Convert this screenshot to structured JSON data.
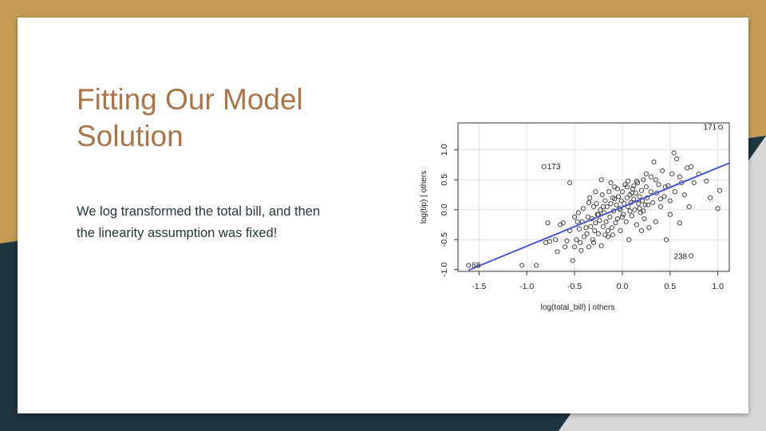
{
  "theme": {
    "slide_background": "#ffffff",
    "frame_gold": "#c49d54",
    "frame_dark": "#1f3540",
    "frame_gray": "#d8d8d8",
    "title_color": "#a8764a",
    "text_color": "#253840"
  },
  "slide": {
    "title_lines": [
      "Fitting Our Model",
      "Solution"
    ],
    "body_lines": [
      "We log transformed the total bill, and then",
      "the linearity assumption was fixed!"
    ]
  },
  "chart_data": {
    "type": "scatter",
    "title": "",
    "xlabel": "log(total_bill) | others",
    "ylabel": "log(tip)  | others",
    "xlim": [
      -1.72,
      1.12
    ],
    "ylim": [
      -1.03,
      1.45
    ],
    "xticks": [
      -1.5,
      -1.0,
      -0.5,
      0.0,
      0.5,
      1.0
    ],
    "xtick_labels": [
      "-1.5",
      "-1.0",
      "-0.5",
      "0.0",
      "0.5",
      "1.0"
    ],
    "yticks": [
      -1.0,
      -0.5,
      0.0,
      0.5,
      1.0
    ],
    "ytick_labels": [
      "-1.0",
      "-0.5",
      "0.0",
      "0.5",
      "1.0"
    ],
    "grid": true,
    "point_color": "#333333",
    "line_color": "#4a55d8",
    "fit_line": {
      "x": [
        -1.61,
        1.12
      ],
      "y": [
        -1.01,
        0.78
      ]
    },
    "labeled_points": [
      {
        "label": "171",
        "x": 1.03,
        "y": 1.38
      },
      {
        "label": "173",
        "x": -0.82,
        "y": 0.72
      },
      {
        "label": "68",
        "x": -1.61,
        "y": -0.93
      },
      {
        "label": "238",
        "x": 0.72,
        "y": -0.77
      }
    ],
    "points": [
      [
        -0.9,
        -0.93
      ],
      [
        -1.05,
        -0.93
      ],
      [
        -0.78,
        -0.22
      ],
      [
        -0.8,
        -0.55
      ],
      [
        -0.76,
        -0.53
      ],
      [
        -0.7,
        -0.5
      ],
      [
        -0.68,
        -0.7
      ],
      [
        -0.65,
        -0.25
      ],
      [
        -0.62,
        -0.22
      ],
      [
        -0.58,
        -0.52
      ],
      [
        -0.55,
        -0.35
      ],
      [
        -0.55,
        0.45
      ],
      [
        -0.52,
        -0.85
      ],
      [
        -0.5,
        -0.62
      ],
      [
        -0.48,
        -0.5
      ],
      [
        -0.47,
        -0.2
      ],
      [
        -0.45,
        -0.32
      ],
      [
        -0.44,
        -0.55
      ],
      [
        -0.42,
        -0.2
      ],
      [
        -0.41,
        0.02
      ],
      [
        -0.4,
        -0.45
      ],
      [
        -0.38,
        -0.3
      ],
      [
        -0.36,
        -0.12
      ],
      [
        -0.35,
        -0.62
      ],
      [
        -0.34,
        0.2
      ],
      [
        -0.33,
        -0.28
      ],
      [
        -0.32,
        -0.15
      ],
      [
        -0.31,
        -0.5
      ],
      [
        -0.3,
        0.05
      ],
      [
        -0.29,
        -0.35
      ],
      [
        -0.28,
        -0.22
      ],
      [
        -0.27,
        0.1
      ],
      [
        -0.26,
        -0.08
      ],
      [
        -0.25,
        -0.4
      ],
      [
        -0.24,
        -0.18
      ],
      [
        -0.23,
        0.0
      ],
      [
        -0.22,
        -0.6
      ],
      [
        -0.21,
        0.25
      ],
      [
        -0.2,
        -0.28
      ],
      [
        -0.19,
        -0.05
      ],
      [
        -0.18,
        0.15
      ],
      [
        -0.17,
        -0.2
      ],
      [
        -0.16,
        0.05
      ],
      [
        -0.15,
        -0.45
      ],
      [
        -0.14,
        0.3
      ],
      [
        -0.13,
        -0.12
      ],
      [
        -0.12,
        0.1
      ],
      [
        -0.11,
        -0.3
      ],
      [
        -0.1,
        0.2
      ],
      [
        -0.09,
        -0.02
      ],
      [
        -0.08,
        0.38
      ],
      [
        -0.07,
        -0.22
      ],
      [
        -0.06,
        0.08
      ],
      [
        -0.05,
        -0.15
      ],
      [
        -0.04,
        0.22
      ],
      [
        -0.03,
        0.02
      ],
      [
        -0.02,
        -0.35
      ],
      [
        -0.01,
        0.15
      ],
      [
        0.0,
        0.3
      ],
      [
        0.01,
        -0.08
      ],
      [
        0.02,
        0.1
      ],
      [
        0.03,
        0.42
      ],
      [
        0.04,
        -0.2
      ],
      [
        0.05,
        0.2
      ],
      [
        0.06,
        0.05
      ],
      [
        0.07,
        -0.5
      ],
      [
        0.08,
        0.25
      ],
      [
        0.09,
        0.12
      ],
      [
        0.1,
        -0.1
      ],
      [
        0.11,
        0.35
      ],
      [
        0.12,
        0.18
      ],
      [
        0.13,
        0.0
      ],
      [
        0.14,
        0.28
      ],
      [
        0.15,
        -0.25
      ],
      [
        0.16,
        0.45
      ],
      [
        0.17,
        0.1
      ],
      [
        0.18,
        0.22
      ],
      [
        0.19,
        -0.05
      ],
      [
        0.2,
        0.32
      ],
      [
        0.21,
        0.15
      ],
      [
        0.22,
        0.5
      ],
      [
        0.23,
        -0.15
      ],
      [
        0.24,
        0.08
      ],
      [
        0.25,
        0.38
      ],
      [
        0.26,
        0.2
      ],
      [
        0.28,
        -0.3
      ],
      [
        0.3,
        0.55
      ],
      [
        0.32,
        0.12
      ],
      [
        0.33,
        0.8
      ],
      [
        0.35,
        -0.2
      ],
      [
        0.36,
        0.28
      ],
      [
        0.38,
        0.42
      ],
      [
        0.4,
        0.05
      ],
      [
        0.42,
        0.65
      ],
      [
        0.44,
        0.22
      ],
      [
        0.46,
        -0.5
      ],
      [
        0.48,
        0.4
      ],
      [
        0.5,
        0.15
      ],
      [
        0.52,
        0.6
      ],
      [
        0.54,
        0.95
      ],
      [
        0.55,
        0.3
      ],
      [
        0.57,
        0.85
      ],
      [
        0.6,
        -0.22
      ],
      [
        0.62,
        0.45
      ],
      [
        0.65,
        0.25
      ],
      [
        0.68,
        0.7
      ],
      [
        0.7,
        0.05
      ],
      [
        0.72,
        0.72
      ],
      [
        0.75,
        0.45
      ],
      [
        0.8,
        0.6
      ],
      [
        0.88,
        0.48
      ],
      [
        0.92,
        0.2
      ],
      [
        1.0,
        0.02
      ],
      [
        1.02,
        0.32
      ],
      [
        -0.6,
        -0.62
      ],
      [
        -0.5,
        -0.12
      ],
      [
        -0.43,
        -0.68
      ],
      [
        -0.37,
        -0.4
      ],
      [
        -0.3,
        -0.55
      ],
      [
        -0.25,
        -0.08
      ],
      [
        -0.2,
        0.05
      ],
      [
        -0.15,
        -0.35
      ],
      [
        -0.1,
        -0.42
      ],
      [
        -0.05,
        0.35
      ],
      [
        0.0,
        -0.12
      ],
      [
        0.05,
        0.38
      ],
      [
        0.1,
        0.28
      ],
      [
        0.15,
        0.48
      ],
      [
        0.2,
        -0.35
      ],
      [
        0.25,
        0.6
      ],
      [
        0.3,
        0.3
      ],
      [
        0.35,
        0.5
      ],
      [
        0.4,
        0.18
      ],
      [
        0.45,
        0.38
      ],
      [
        0.5,
        -0.08
      ],
      [
        0.6,
        0.55
      ],
      [
        -0.22,
        0.5
      ],
      [
        -0.12,
        0.45
      ],
      [
        -0.08,
        0.18
      ],
      [
        0.06,
        0.48
      ],
      [
        0.12,
        0.4
      ],
      [
        0.18,
        0.02
      ],
      [
        -0.35,
        0.12
      ],
      [
        -0.28,
        0.3
      ],
      [
        0.22,
        -0.02
      ],
      [
        0.27,
        0.08
      ],
      [
        -0.18,
        -0.42
      ],
      [
        -0.02,
        0.0
      ],
      [
        0.08,
        -0.02
      ],
      [
        -0.46,
        -0.05
      ]
    ]
  }
}
